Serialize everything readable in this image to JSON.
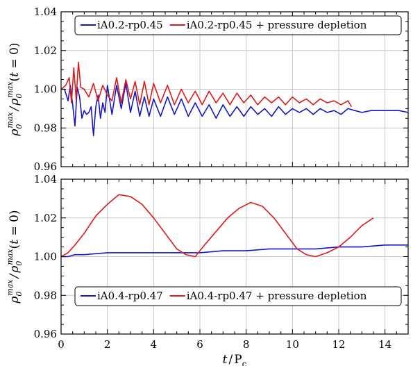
{
  "chart_data": [
    {
      "type": "line",
      "xlim": [
        0,
        15
      ],
      "ylim": [
        0.96,
        1.04
      ],
      "xticks": [
        0,
        2,
        4,
        6,
        8,
        10,
        12,
        14
      ],
      "yticks": [
        0.96,
        0.98,
        1.0,
        1.02,
        1.04
      ],
      "ytick_labels": [
        "0.96",
        "0.98",
        "1.00",
        "1.02",
        "1.04"
      ],
      "show_xtick_labels": false,
      "grid": true,
      "legend": "top",
      "ylabel": "ρ0max / ρ0max(t = 0)",
      "series": [
        {
          "name": "iA0.2-rp0.45",
          "color": "#1515c8",
          "x": [
            0,
            0.15,
            0.3,
            0.4,
            0.5,
            0.6,
            0.7,
            0.8,
            0.9,
            1.0,
            1.1,
            1.2,
            1.3,
            1.4,
            1.5,
            1.6,
            1.7,
            1.8,
            1.9,
            2.0,
            2.2,
            2.4,
            2.6,
            2.8,
            3.0,
            3.2,
            3.4,
            3.6,
            3.8,
            4.0,
            4.3,
            4.6,
            4.9,
            5.2,
            5.5,
            5.8,
            6.1,
            6.4,
            6.7,
            7.0,
            7.3,
            7.6,
            7.9,
            8.2,
            8.5,
            8.8,
            9.1,
            9.4,
            9.7,
            10.0,
            10.3,
            10.6,
            10.9,
            11.2,
            11.5,
            11.8,
            12.1,
            12.4,
            12.7,
            13.0,
            13.4,
            13.8,
            14.2,
            14.6,
            15.0
          ],
          "y": [
            1.0,
            1.0,
            0.994,
            1.002,
            0.992,
            0.981,
            1.001,
            0.996,
            0.985,
            0.989,
            0.987,
            0.988,
            0.991,
            0.976,
            0.991,
            0.997,
            0.985,
            0.993,
            0.988,
            1.002,
            0.987,
            1.002,
            0.99,
            1.003,
            0.988,
            0.999,
            0.986,
            0.996,
            0.986,
            0.995,
            0.986,
            0.996,
            0.987,
            0.995,
            0.986,
            0.993,
            0.986,
            0.992,
            0.985,
            0.992,
            0.986,
            0.991,
            0.986,
            0.991,
            0.987,
            0.99,
            0.986,
            0.991,
            0.987,
            0.99,
            0.988,
            0.99,
            0.987,
            0.99,
            0.988,
            0.989,
            0.987,
            0.99,
            0.989,
            0.988,
            0.989,
            0.989,
            0.989,
            0.989,
            0.988
          ]
        },
        {
          "name": "iA0.2-rp0.45 + pressure depletion",
          "color": "#dd1a1a",
          "x": [
            0,
            0.2,
            0.35,
            0.45,
            0.55,
            0.65,
            0.75,
            0.85,
            1.0,
            1.2,
            1.4,
            1.6,
            1.8,
            2.0,
            2.2,
            2.4,
            2.6,
            2.8,
            3.0,
            3.2,
            3.4,
            3.6,
            3.8,
            4.0,
            4.3,
            4.6,
            4.9,
            5.2,
            5.5,
            5.8,
            6.1,
            6.4,
            6.7,
            7.0,
            7.3,
            7.6,
            7.9,
            8.2,
            8.5,
            8.8,
            9.1,
            9.4,
            9.7,
            10.0,
            10.3,
            10.6,
            10.9,
            11.2,
            11.5,
            11.8,
            12.1,
            12.4,
            12.55
          ],
          "y": [
            1.0,
            1.002,
            1.006,
            0.993,
            1.011,
            0.995,
            1.014,
            1.001,
            1.0,
            0.996,
            1.003,
            0.994,
            1.002,
            0.997,
            0.994,
            1.006,
            0.993,
            1.005,
            0.995,
            1.004,
            0.992,
            1.004,
            0.992,
            1.003,
            0.993,
            1.002,
            0.992,
            1.0,
            0.993,
            0.999,
            0.992,
            0.999,
            0.993,
            0.998,
            0.992,
            0.998,
            0.993,
            0.997,
            0.992,
            0.996,
            0.993,
            0.996,
            0.992,
            0.996,
            0.993,
            0.995,
            0.992,
            0.995,
            0.993,
            0.994,
            0.992,
            0.994,
            0.991
          ]
        }
      ]
    },
    {
      "type": "line",
      "xlim": [
        0,
        15
      ],
      "ylim": [
        0.96,
        1.04
      ],
      "xticks": [
        0,
        2,
        4,
        6,
        8,
        10,
        12,
        14
      ],
      "xtick_labels": [
        "0",
        "2",
        "4",
        "6",
        "8",
        "10",
        "12",
        "14"
      ],
      "yticks": [
        0.96,
        0.98,
        1.0,
        1.02,
        1.04
      ],
      "ytick_labels": [
        "0.96",
        "0.98",
        "1.00",
        "1.02",
        "1.04"
      ],
      "show_xtick_labels": true,
      "grid": true,
      "legend": "bottom",
      "xlabel": "t / Pc",
      "ylabel": "ρ0max / ρ0max(t = 0)",
      "series": [
        {
          "name": "iA0.4-rp0.47",
          "color": "#1515c8",
          "x": [
            0,
            0.3,
            0.6,
            1.0,
            2.0,
            3.0,
            4.0,
            5.0,
            6.0,
            7.0,
            8.0,
            9.0,
            10.0,
            11.0,
            12.0,
            13.0,
            14.0,
            15.0
          ],
          "y": [
            1.0,
            1.0,
            1.001,
            1.001,
            1.002,
            1.002,
            1.002,
            1.002,
            1.002,
            1.003,
            1.003,
            1.004,
            1.004,
            1.004,
            1.005,
            1.005,
            1.006,
            1.006
          ]
        },
        {
          "name": "iA0.4-rp0.47 + pressure depletion",
          "color": "#dd1a1a",
          "x": [
            0,
            0.3,
            0.6,
            1.0,
            1.5,
            2.0,
            2.5,
            3.0,
            3.5,
            4.0,
            4.5,
            5.0,
            5.4,
            5.8,
            6.2,
            6.7,
            7.2,
            7.7,
            8.2,
            8.7,
            9.2,
            9.7,
            10.2,
            10.6,
            11.0,
            11.5,
            12.0,
            12.5,
            13.0,
            13.5
          ],
          "y": [
            1.0,
            1.002,
            1.006,
            1.012,
            1.021,
            1.027,
            1.032,
            1.031,
            1.027,
            1.02,
            1.012,
            1.004,
            1.001,
            1.0,
            1.006,
            1.013,
            1.02,
            1.025,
            1.028,
            1.026,
            1.02,
            1.012,
            1.004,
            1.001,
            1.0,
            1.002,
            1.005,
            1.01,
            1.016,
            1.02
          ]
        }
      ]
    }
  ]
}
